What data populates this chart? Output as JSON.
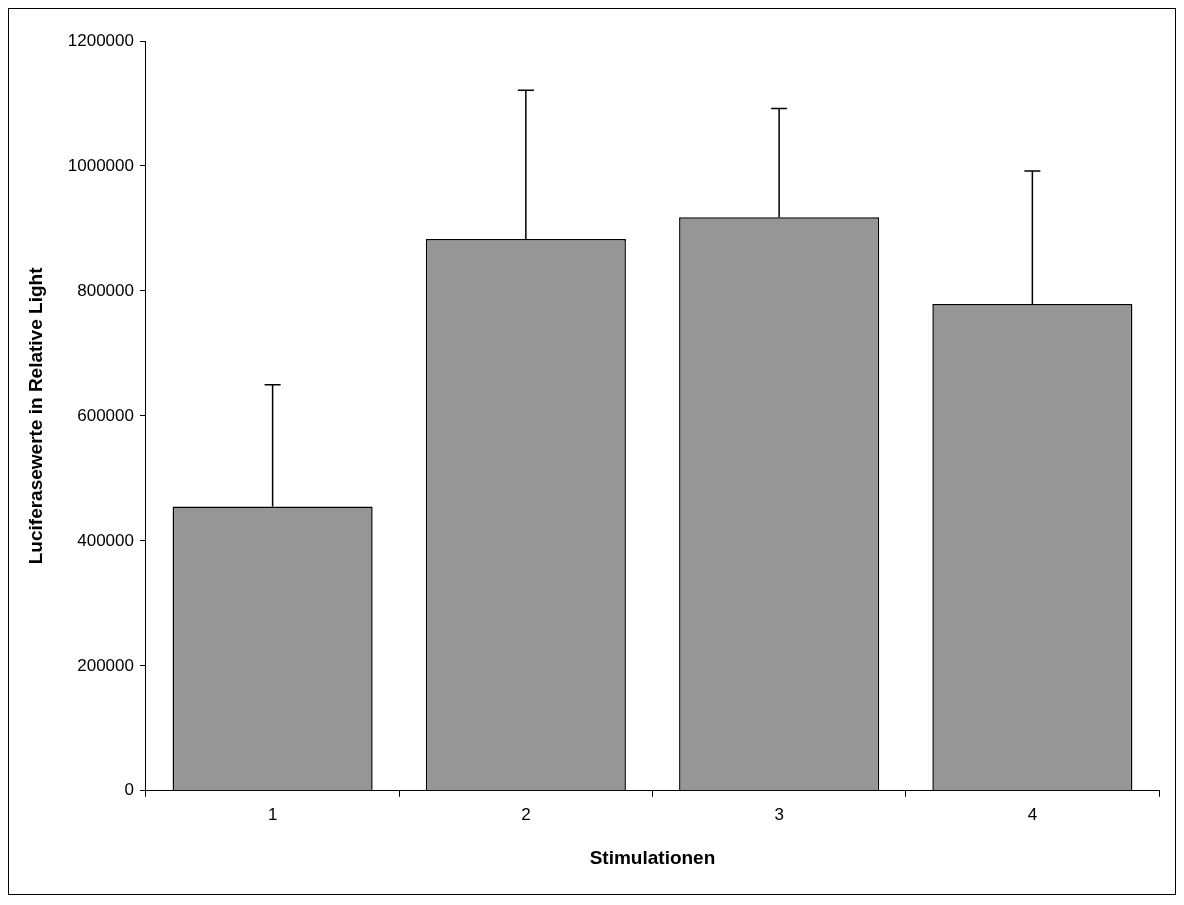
{
  "chart_data": {
    "type": "bar",
    "xlabel": "Stimulationen",
    "ylabel": "Luciferasewerte in Relative Light",
    "categories": [
      "1",
      "2",
      "3",
      "4"
    ],
    "series": [
      {
        "color": "#969696",
        "values": [
          455000,
          883000,
          918000,
          779000
        ],
        "errors": [
          [
            455000,
            650000
          ],
          [
            883000,
            1121000
          ],
          [
            918000,
            1092000
          ],
          [
            779000,
            992000
          ]
        ]
      }
    ],
    "ylim": [
      0,
      1200000
    ],
    "yticks": [
      0,
      200000,
      400000,
      600000,
      800000,
      1000000,
      1200000
    ],
    "grid": false,
    "legend": false
  }
}
